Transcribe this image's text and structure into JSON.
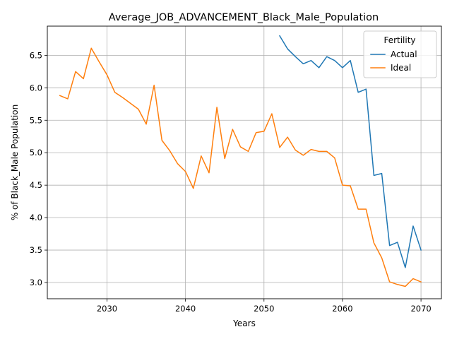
{
  "chart_data": {
    "type": "line",
    "title": "Average_JOB_ADVANCEMENT_Black_Male_Population",
    "xlabel": "Years",
    "ylabel": "% of Black_Male Population",
    "xlim": [
      2022.4,
      2072.6
    ],
    "ylim": [
      2.75,
      6.95
    ],
    "x_ticks": [
      2030,
      2040,
      2050,
      2060,
      2070
    ],
    "y_ticks": [
      3.0,
      3.5,
      4.0,
      4.5,
      5.0,
      5.5,
      6.0,
      6.5
    ],
    "x_tick_labels": [
      "2030",
      "2040",
      "2050",
      "2060",
      "2070"
    ],
    "y_tick_labels": [
      "3.0",
      "3.5",
      "4.0",
      "4.5",
      "5.0",
      "5.5",
      "6.0",
      "6.5"
    ],
    "grid": true,
    "legend": {
      "title": "Fertility",
      "placement": "top-right"
    },
    "series": [
      {
        "name": "Actual",
        "color": "#1f77b4",
        "x": [
          2052,
          2053,
          2054,
          2055,
          2056,
          2057,
          2058,
          2059,
          2060,
          2061,
          2062,
          2063,
          2064,
          2065,
          2066,
          2067,
          2068,
          2069,
          2070
        ],
        "y": [
          6.8,
          6.6,
          6.48,
          6.37,
          6.42,
          6.31,
          6.48,
          6.42,
          6.31,
          6.42,
          5.93,
          5.98,
          4.65,
          4.68,
          3.57,
          3.62,
          3.23,
          3.87,
          3.5
        ]
      },
      {
        "name": "Ideal",
        "color": "#ff7f0e",
        "x": [
          2024,
          2025,
          2026,
          2027,
          2028,
          2029,
          2030,
          2031,
          2032,
          2033,
          2034,
          2035,
          2036,
          2037,
          2038,
          2039,
          2040,
          2041,
          2042,
          2043,
          2044,
          2045,
          2046,
          2047,
          2048,
          2049,
          2050,
          2051,
          2052,
          2053,
          2054,
          2055,
          2056,
          2057,
          2058,
          2059,
          2060,
          2061,
          2062,
          2063,
          2064,
          2065,
          2066,
          2067,
          2068,
          2069,
          2070
        ],
        "y": [
          5.88,
          5.83,
          6.25,
          6.14,
          6.61,
          6.4,
          6.2,
          5.93,
          5.85,
          5.76,
          5.67,
          5.44,
          6.04,
          5.19,
          5.03,
          4.83,
          4.71,
          4.45,
          4.95,
          4.69,
          5.7,
          4.91,
          5.36,
          5.09,
          5.02,
          5.31,
          5.33,
          5.6,
          5.08,
          5.24,
          5.04,
          4.96,
          5.05,
          5.02,
          5.02,
          4.92,
          4.5,
          4.49,
          4.13,
          4.13,
          3.61,
          3.38,
          3.01,
          2.97,
          2.94,
          3.06,
          3.01
        ]
      }
    ]
  }
}
